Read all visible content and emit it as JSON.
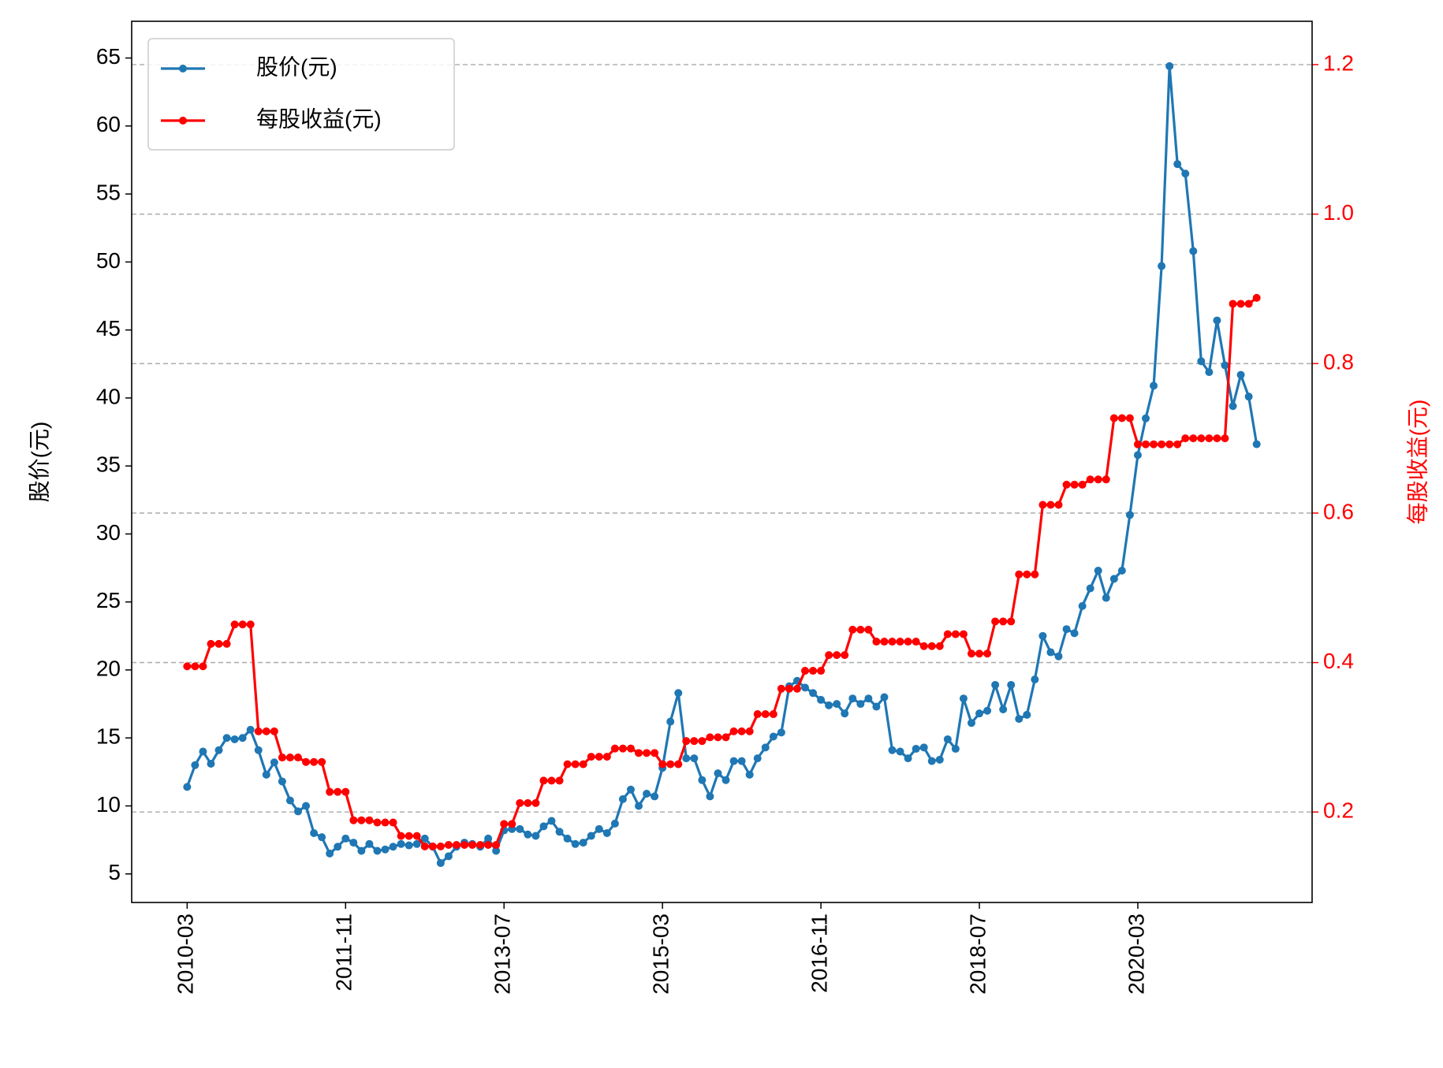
{
  "chart_data": {
    "type": "line",
    "x": [
      "2010-03",
      "2010-04",
      "2010-05",
      "2010-06",
      "2010-07",
      "2010-08",
      "2010-09",
      "2010-10",
      "2010-11",
      "2010-12",
      "2011-01",
      "2011-02",
      "2011-03",
      "2011-04",
      "2011-05",
      "2011-06",
      "2011-07",
      "2011-08",
      "2011-09",
      "2011-10",
      "2011-11",
      "2011-12",
      "2012-01",
      "2012-02",
      "2012-03",
      "2012-04",
      "2012-05",
      "2012-06",
      "2012-07",
      "2012-08",
      "2012-09",
      "2012-10",
      "2012-11",
      "2012-12",
      "2013-01",
      "2013-02",
      "2013-03",
      "2013-04",
      "2013-05",
      "2013-06",
      "2013-07",
      "2013-08",
      "2013-09",
      "2013-10",
      "2013-11",
      "2013-12",
      "2014-01",
      "2014-02",
      "2014-03",
      "2014-04",
      "2014-05",
      "2014-06",
      "2014-07",
      "2014-08",
      "2014-09",
      "2014-10",
      "2014-11",
      "2014-12",
      "2015-01",
      "2015-02",
      "2015-03",
      "2015-04",
      "2015-05",
      "2015-06",
      "2015-07",
      "2015-08",
      "2015-09",
      "2015-10",
      "2015-11",
      "2015-12",
      "2016-01",
      "2016-02",
      "2016-03",
      "2016-04",
      "2016-05",
      "2016-06",
      "2016-07",
      "2016-08",
      "2016-09",
      "2016-10",
      "2016-11",
      "2016-12",
      "2017-01",
      "2017-02",
      "2017-03",
      "2017-04",
      "2017-05",
      "2017-06",
      "2017-07",
      "2017-08",
      "2017-09",
      "2017-10",
      "2017-11",
      "2017-12",
      "2018-01",
      "2018-02",
      "2018-03",
      "2018-04",
      "2018-05",
      "2018-06",
      "2018-07",
      "2018-08",
      "2018-09",
      "2018-10",
      "2018-11",
      "2018-12",
      "2019-01",
      "2019-02",
      "2019-03",
      "2019-04",
      "2019-05",
      "2019-06",
      "2019-07",
      "2019-08",
      "2019-09",
      "2019-10",
      "2019-11",
      "2019-12",
      "2020-01",
      "2020-02",
      "2020-03",
      "2020-04",
      "2020-05",
      "2020-06",
      "2020-07",
      "2020-08",
      "2020-09",
      "2020-10",
      "2020-11",
      "2020-12",
      "2021-01",
      "2021-02",
      "2021-03",
      "2021-04",
      "2021-05",
      "2021-06"
    ],
    "series": [
      {
        "name": "股价(元)",
        "color": "#1f77b4",
        "axis": "y",
        "values": [
          11.4,
          13.0,
          14.0,
          13.1,
          14.1,
          15.0,
          14.9,
          15.0,
          15.6,
          14.1,
          12.3,
          13.2,
          11.8,
          10.4,
          9.6,
          10.0,
          8.0,
          7.7,
          6.5,
          7.0,
          7.6,
          7.3,
          6.7,
          7.2,
          6.7,
          6.8,
          7.0,
          7.2,
          7.1,
          7.2,
          7.6,
          7.0,
          5.8,
          6.3,
          7.0,
          7.3,
          7.2,
          7.0,
          7.6,
          6.7,
          8.2,
          8.3,
          8.3,
          7.9,
          7.8,
          8.5,
          8.9,
          8.1,
          7.6,
          7.2,
          7.3,
          7.8,
          8.3,
          8.0,
          8.7,
          10.5,
          11.2,
          10.0,
          10.9,
          10.7,
          12.8,
          16.2,
          18.3,
          13.5,
          13.5,
          11.9,
          10.7,
          12.4,
          11.9,
          13.3,
          13.3,
          12.3,
          13.5,
          14.3,
          15.1,
          15.4,
          18.8,
          19.2,
          18.7,
          18.3,
          17.8,
          17.4,
          17.5,
          16.8,
          17.9,
          17.5,
          17.9,
          17.3,
          18.0,
          14.1,
          14.0,
          13.5,
          14.2,
          14.3,
          13.3,
          13.4,
          14.9,
          14.2,
          17.9,
          16.1,
          16.8,
          17.0,
          18.9,
          17.1,
          18.9,
          16.4,
          16.7,
          19.3,
          22.5,
          21.3,
          21.0,
          23.0,
          22.7,
          24.7,
          26.0,
          27.3,
          25.3,
          26.7,
          27.3,
          31.4,
          35.8,
          38.5,
          40.9,
          49.7,
          64.4,
          57.2,
          56.5,
          50.8,
          42.7,
          41.9,
          45.7,
          42.4,
          39.4,
          41.7,
          40.1,
          36.6
        ]
      },
      {
        "name": "每股收益(元)",
        "color": "#ff0000",
        "axis": "y2",
        "values": [
          0.395,
          0.395,
          0.395,
          0.425,
          0.425,
          0.425,
          0.451,
          0.451,
          0.451,
          0.308,
          0.308,
          0.308,
          0.273,
          0.273,
          0.273,
          0.267,
          0.267,
          0.267,
          0.227,
          0.227,
          0.227,
          0.189,
          0.189,
          0.189,
          0.186,
          0.186,
          0.186,
          0.168,
          0.168,
          0.168,
          0.154,
          0.154,
          0.154,
          0.156,
          0.156,
          0.156,
          0.156,
          0.156,
          0.156,
          0.156,
          0.184,
          0.184,
          0.212,
          0.212,
          0.212,
          0.242,
          0.242,
          0.242,
          0.264,
          0.264,
          0.264,
          0.274,
          0.274,
          0.274,
          0.285,
          0.285,
          0.285,
          0.279,
          0.279,
          0.279,
          0.264,
          0.264,
          0.264,
          0.295,
          0.295,
          0.295,
          0.3,
          0.3,
          0.3,
          0.308,
          0.308,
          0.308,
          0.331,
          0.331,
          0.331,
          0.365,
          0.365,
          0.365,
          0.389,
          0.389,
          0.389,
          0.41,
          0.41,
          0.41,
          0.444,
          0.444,
          0.444,
          0.428,
          0.428,
          0.428,
          0.428,
          0.428,
          0.428,
          0.422,
          0.422,
          0.422,
          0.438,
          0.438,
          0.438,
          0.412,
          0.412,
          0.412,
          0.455,
          0.455,
          0.455,
          0.518,
          0.518,
          0.518,
          0.611,
          0.611,
          0.611,
          0.638,
          0.638,
          0.638,
          0.645,
          0.645,
          0.645,
          0.727,
          0.727,
          0.727,
          0.692,
          0.692,
          0.692,
          0.692,
          0.692,
          0.692,
          0.7,
          0.7,
          0.7,
          0.7,
          0.7,
          0.7,
          0.88,
          0.88,
          0.88,
          0.888
        ]
      }
    ],
    "xlim": [
      "2009-08",
      "2022-01"
    ],
    "xticks": [
      "2010-03",
      "2011-11",
      "2013-07",
      "2015-03",
      "2016-11",
      "2018-07",
      "2020-03"
    ],
    "ylabel": "股价(元)",
    "ylim": [
      2.9,
      67.7
    ],
    "yticks": [
      5,
      10,
      15,
      20,
      25,
      30,
      35,
      40,
      45,
      50,
      55,
      60,
      65
    ],
    "y2label": "每股收益(元)",
    "y2lim": [
      0.079,
      1.258
    ],
    "y2ticks": [
      0.2,
      0.4,
      0.6,
      0.8,
      {
        "value": 1,
        "label": "1.0"
      },
      1.2
    ],
    "y2color": "#ff0000",
    "grid_axis": "y2",
    "legend": "upper left"
  }
}
